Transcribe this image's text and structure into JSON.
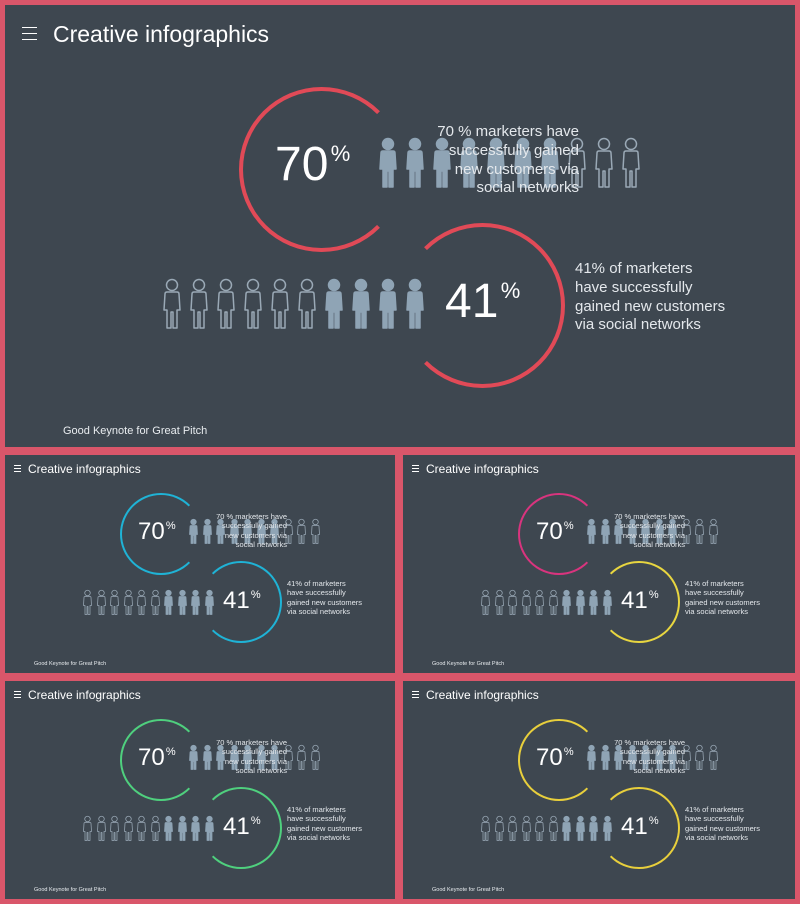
{
  "slides": [
    {
      "title": "Creative infographics",
      "footer": "Good Keynote for Great Pitch",
      "colors": {
        "ring1": "#e14a57",
        "ring2": "#e14a57"
      },
      "stat1": {
        "value": "70",
        "unit": "%",
        "filled": 7,
        "total": 10,
        "text": "70 % marketers have\nsuccessfully gained\nnew customers via\nsocial networks"
      },
      "stat2": {
        "value": "41",
        "unit": "%",
        "filled": 4,
        "total": 10,
        "text": "41% of marketers\nhave successfully\ngained new customers\nvia social networks"
      }
    },
    {
      "title": "Creative infographics",
      "footer": "Good Keynote for Great Pitch",
      "colors": {
        "ring1": "#1fb3d6",
        "ring2": "#1fb3d6"
      },
      "stat1": {
        "value": "70",
        "unit": "%",
        "filled": 7,
        "total": 10,
        "text": "70 % marketers have\nsuccessfully gained\nnew customers via\nsocial networks"
      },
      "stat2": {
        "value": "41",
        "unit": "%",
        "filled": 4,
        "total": 10,
        "text": "41% of marketers\nhave successfully\ngained new customers\nvia social networks"
      }
    },
    {
      "title": "Creative infographics",
      "footer": "Good Keynote for Great Pitch",
      "colors": {
        "ring1": "#d9347e",
        "ring2": "#e8d640"
      },
      "stat1": {
        "value": "70",
        "unit": "%",
        "filled": 7,
        "total": 10,
        "text": "70 % marketers have\nsuccessfully gained\nnew customers via\nsocial networks"
      },
      "stat2": {
        "value": "41",
        "unit": "%",
        "filled": 4,
        "total": 10,
        "text": "41% of marketers\nhave successfully\ngained new customers\nvia social networks"
      }
    },
    {
      "title": "Creative infographics",
      "footer": "Good Keynote for Great Pitch",
      "colors": {
        "ring1": "#4fd07e",
        "ring2": "#4fd07e"
      },
      "stat1": {
        "value": "70",
        "unit": "%",
        "filled": 7,
        "total": 10,
        "text": "70 % marketers have\nsuccessfully gained\nnew customers via\nsocial networks"
      },
      "stat2": {
        "value": "41",
        "unit": "%",
        "filled": 4,
        "total": 10,
        "text": "41% of marketers\nhave successfully\ngained new customers\nvia social networks"
      }
    },
    {
      "title": "Creative infographics",
      "footer": "Good Keynote for Great Pitch",
      "colors": {
        "ring1": "#e8cf3c",
        "ring2": "#e8cf3c"
      },
      "stat1": {
        "value": "70",
        "unit": "%",
        "filled": 7,
        "total": 10,
        "text": "70 % marketers have\nsuccessfully gained\nnew customers via\nsocial networks"
      },
      "stat2": {
        "value": "41",
        "unit": "%",
        "filled": 4,
        "total": 10,
        "text": "41% of marketers\nhave successfully\ngained new customers\nvia social networks"
      }
    }
  ],
  "icons": {
    "menu": "hamburger-menu-icon",
    "person": "person-icon"
  },
  "palette": {
    "person_filled": "#8fa4b5",
    "person_outline": "#9aa9b6"
  }
}
